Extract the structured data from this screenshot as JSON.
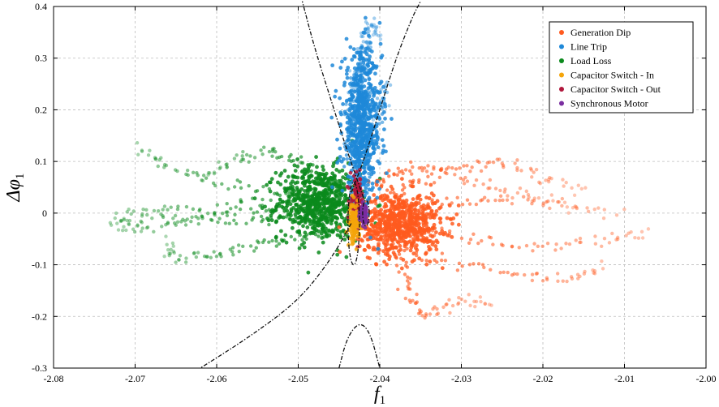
{
  "chart_data": {
    "type": "scatter",
    "title": "",
    "xlabel": "f",
    "xlabel_sub": "1",
    "ylabel": "Δφ",
    "ylabel_sub": "1",
    "xlim": [
      -2.08,
      -2.0
    ],
    "ylim": [
      -0.3,
      0.4
    ],
    "x_ticks": [
      -2.08,
      -2.07,
      -2.06,
      -2.05,
      -2.04,
      -2.03,
      -2.02,
      -2.01,
      -2.0
    ],
    "x_tick_labels": [
      "-2.08",
      "-2.07",
      "-2.06",
      "-2.05",
      "-2.04",
      "-2.03",
      "-2.02",
      "-2.01",
      "-2.00"
    ],
    "y_ticks": [
      -0.3,
      -0.2,
      -0.1,
      0,
      0.1,
      0.2,
      0.3,
      0.4
    ],
    "y_tick_labels": [
      "-0.3",
      "-0.2",
      "-0.1",
      "0",
      "0.1",
      "0.2",
      "0.3",
      "0.4"
    ],
    "grid": true,
    "legend_position": "top-right",
    "series": [
      {
        "name": "Generation Dip",
        "color": "#ff5a1f",
        "center": [
          -2.0375,
          -0.02
        ],
        "spread": [
          0.0025,
          0.03
        ],
        "trails": [
          [
            [
              -2.04,
              -0.01
            ],
            [
              -2.035,
              -0.03
            ],
            [
              -2.028,
              -0.05
            ],
            [
              -2.02,
              -0.07
            ],
            [
              -2.012,
              -0.05
            ],
            [
              -2.007,
              -0.04
            ]
          ],
          [
            [
              -2.039,
              0.0
            ],
            [
              -2.033,
              0.02
            ],
            [
              -2.026,
              0.03
            ],
            [
              -2.018,
              0.02
            ],
            [
              -2.01,
              0.0
            ]
          ],
          [
            [
              -2.04,
              0.02
            ],
            [
              -2.036,
              0.06
            ],
            [
              -2.03,
              0.09
            ],
            [
              -2.025,
              0.1
            ],
            [
              -2.02,
              0.07
            ],
            [
              -2.015,
              0.04
            ]
          ],
          [
            [
              -2.04,
              -0.04
            ],
            [
              -2.037,
              -0.1
            ],
            [
              -2.036,
              -0.17
            ],
            [
              -2.034,
              -0.2
            ],
            [
              -2.03,
              -0.16
            ],
            [
              -2.026,
              -0.18
            ]
          ],
          [
            [
              -2.041,
              0.05
            ],
            [
              -2.038,
              0.08
            ],
            [
              -2.034,
              0.09
            ],
            [
              -2.028,
              0.06
            ],
            [
              -2.022,
              0.03
            ],
            [
              -2.016,
              0.01
            ]
          ],
          [
            [
              -2.04,
              -0.06
            ],
            [
              -2.032,
              -0.09
            ],
            [
              -2.024,
              -0.12
            ],
            [
              -2.017,
              -0.13
            ],
            [
              -2.012,
              -0.1
            ]
          ]
        ]
      },
      {
        "name": "Line Trip",
        "color": "#1e88d8",
        "center": [
          -2.0422,
          0.17
        ],
        "spread": [
          0.0012,
          0.07
        ],
        "trails": [
          [
            [
              -2.0425,
              0.04
            ],
            [
              -2.042,
              0.15
            ],
            [
              -2.0418,
              0.25
            ],
            [
              -2.0415,
              0.33
            ],
            [
              -2.041,
              0.37
            ],
            [
              -2.04,
              0.34
            ]
          ],
          [
            [
              -2.043,
              0.06
            ],
            [
              -2.0428,
              0.18
            ],
            [
              -2.0425,
              0.3
            ],
            [
              -2.042,
              0.35
            ]
          ],
          [
            [
              -2.042,
              0.05
            ],
            [
              -2.041,
              0.12
            ],
            [
              -2.04,
              0.2
            ],
            [
              -2.0395,
              0.25
            ],
            [
              -2.04,
              0.18
            ]
          ],
          [
            [
              -2.0435,
              0.08
            ],
            [
              -2.044,
              0.16
            ],
            [
              -2.0436,
              0.24
            ],
            [
              -2.043,
              0.28
            ]
          ]
        ]
      },
      {
        "name": "Load Loss",
        "color": "#0b8a1c",
        "center": [
          -2.0475,
          0.02
        ],
        "spread": [
          0.0025,
          0.035
        ],
        "trails": [
          [
            [
              -2.045,
              0.0
            ],
            [
              -2.052,
              -0.01
            ],
            [
              -2.06,
              -0.02
            ],
            [
              -2.068,
              -0.01
            ],
            [
              -2.073,
              -0.02
            ]
          ],
          [
            [
              -2.045,
              0.02
            ],
            [
              -2.052,
              0.04
            ],
            [
              -2.06,
              0.06
            ],
            [
              -2.066,
              0.09
            ],
            [
              -2.07,
              0.13
            ]
          ],
          [
            [
              -2.045,
              -0.03
            ],
            [
              -2.05,
              -0.05
            ],
            [
              -2.055,
              -0.06
            ],
            [
              -2.06,
              -0.08
            ],
            [
              -2.065,
              -0.09
            ],
            [
              -2.066,
              -0.05
            ]
          ],
          [
            [
              -2.046,
              0.05
            ],
            [
              -2.05,
              0.1
            ],
            [
              -2.054,
              0.12
            ],
            [
              -2.058,
              0.1
            ],
            [
              -2.062,
              0.07
            ]
          ],
          [
            [
              -2.045,
              -0.01
            ],
            [
              -2.055,
              0.0
            ],
            [
              -2.065,
              0.01
            ],
            [
              -2.072,
              0.0
            ]
          ],
          [
            [
              -2.045,
              0.01
            ],
            [
              -2.05,
              0.03
            ],
            [
              -2.057,
              0.02
            ],
            [
              -2.063,
              -0.01
            ],
            [
              -2.069,
              -0.03
            ],
            [
              -2.073,
              -0.02
            ]
          ]
        ]
      },
      {
        "name": "Capacitor Switch - In",
        "color": "#f5a50a",
        "center": [
          -2.0431,
          -0.02
        ],
        "spread": [
          0.0003,
          0.018
        ],
        "trails": []
      },
      {
        "name": "Capacitor Switch - Out",
        "color": "#b0173c",
        "center": [
          -2.0428,
          0.02
        ],
        "spread": [
          0.0004,
          0.025
        ],
        "trails": []
      },
      {
        "name": "Synchronous Motor",
        "color": "#7a2ea0",
        "center": [
          -2.042,
          0.0
        ],
        "spread": [
          0.0002,
          0.008
        ],
        "trails": []
      }
    ],
    "boundary_curves": [
      {
        "name": "right-boundary",
        "points": [
          [
            -2.0435,
            0.04
          ],
          [
            -2.042,
            0.1
          ],
          [
            -2.04,
            0.2
          ],
          [
            -2.038,
            0.3
          ],
          [
            -2.036,
            0.38
          ],
          [
            -2.035,
            0.41
          ]
        ]
      },
      {
        "name": "left-boundary",
        "points": [
          [
            -2.042,
            0.03
          ],
          [
            -2.044,
            0.12
          ],
          [
            -2.046,
            0.22
          ],
          [
            -2.048,
            0.32
          ],
          [
            -2.0495,
            0.41
          ]
        ]
      },
      {
        "name": "lower-left-boundary",
        "points": [
          [
            -2.0435,
            -0.02
          ],
          [
            -2.046,
            -0.09
          ],
          [
            -2.05,
            -0.17
          ],
          [
            -2.056,
            -0.24
          ],
          [
            -2.062,
            -0.3
          ]
        ]
      },
      {
        "name": "bottom-parabola",
        "points": [
          [
            -2.045,
            -0.3
          ],
          [
            -2.044,
            -0.24
          ],
          [
            -2.0425,
            -0.21
          ],
          [
            -2.0412,
            -0.23
          ],
          [
            -2.04,
            -0.3
          ]
        ]
      }
    ],
    "boundary_ellipses": [
      {
        "name": "left-ellipse",
        "cx": -2.0432,
        "cy": -0.02,
        "rx": 0.0007,
        "ry": 0.08
      },
      {
        "name": "right-ellipse",
        "cx": -2.0417,
        "cy": 0.0,
        "rx": 0.0004,
        "ry": 0.025
      }
    ]
  }
}
